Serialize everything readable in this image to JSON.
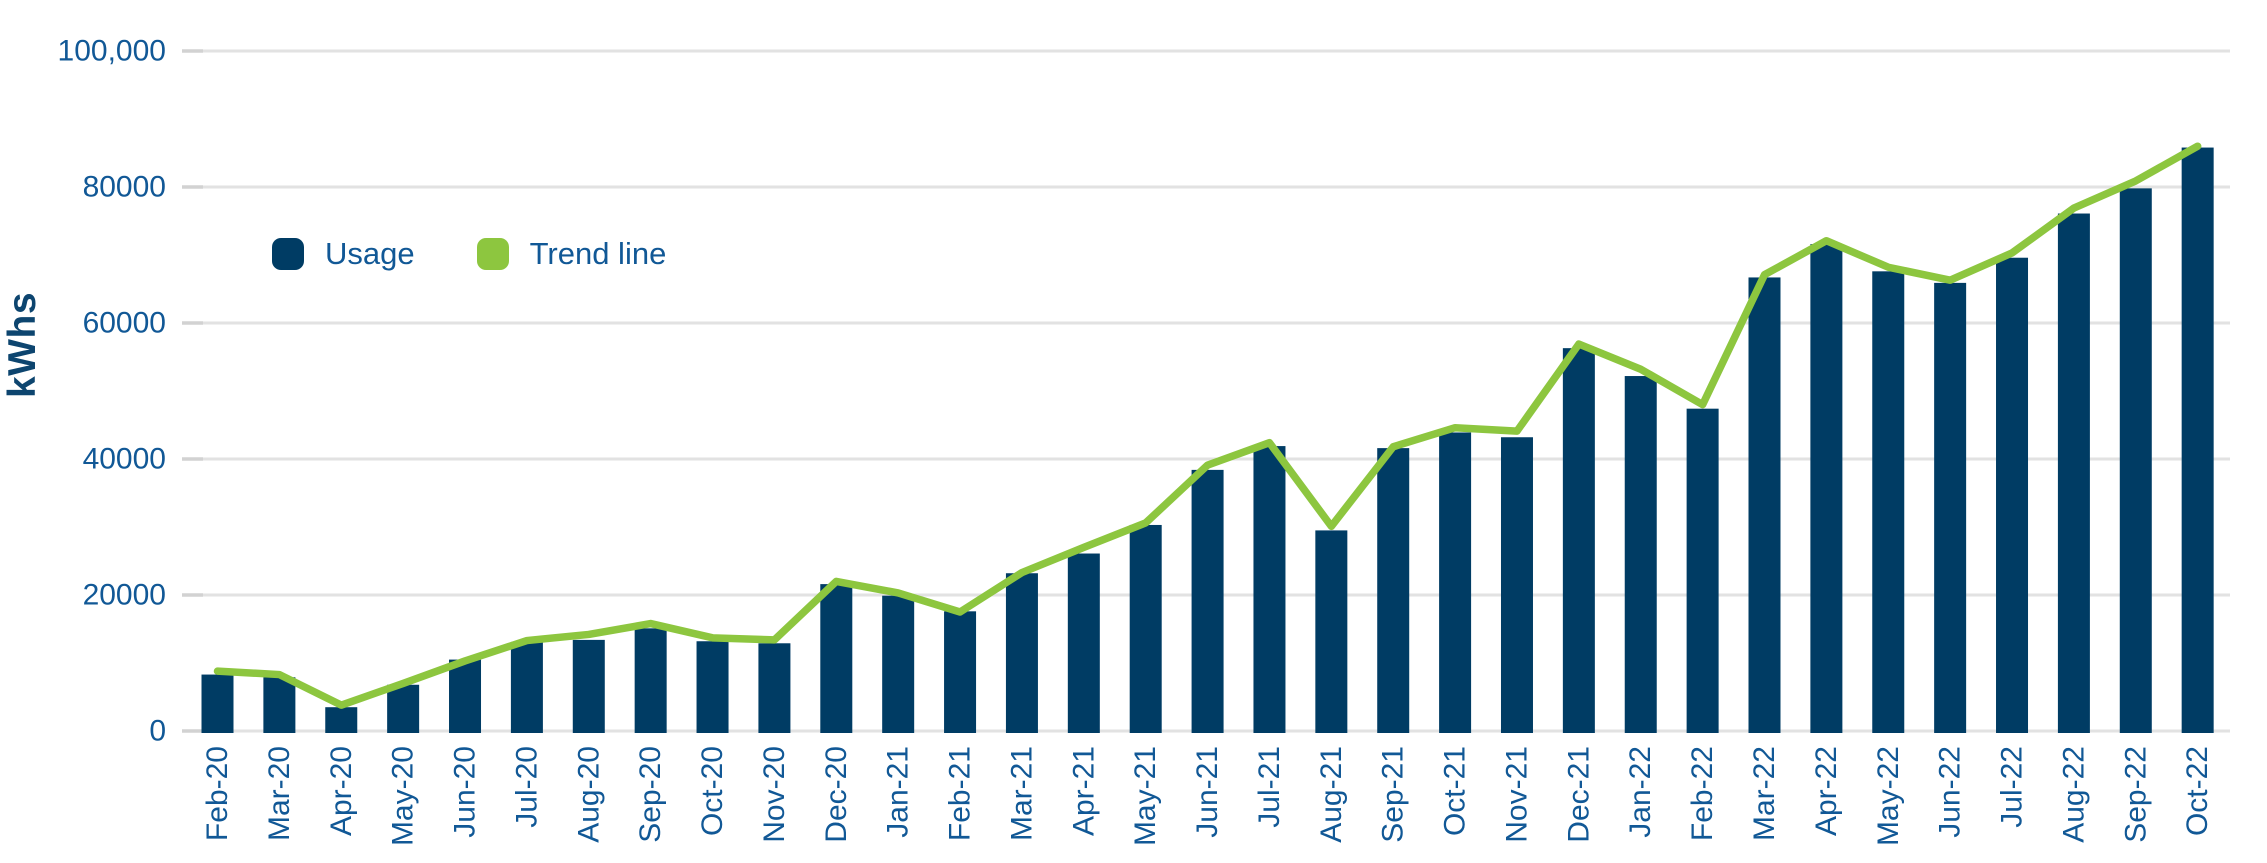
{
  "chart": {
    "y_axis_title": "kWhs",
    "legend": [
      {
        "label": "Usage",
        "color": "#003c64",
        "type": "bar"
      },
      {
        "label": "Trend line",
        "color": "#8dc63f",
        "type": "line"
      }
    ]
  },
  "style": {
    "bar_color": "#003c64",
    "trend_line_color": "#8dc63f",
    "axis_text_color": "#115896",
    "axis_title_color": "#0d456f",
    "gridline_color": "#e2e2e2",
    "tick_mark_color": "#d2d2d2",
    "background_color": "#ffffff"
  },
  "chart_data": {
    "type": "bar",
    "title": "",
    "xlabel": "",
    "ylabel": "kWhs",
    "ylim": [
      0,
      100000
    ],
    "y_tick_values": [
      0,
      20000,
      40000,
      60000,
      80000,
      100000
    ],
    "y_tick_labels": [
      "0",
      "20000",
      "40000",
      "60000",
      "80000",
      "100,000"
    ],
    "grid": true,
    "legend_position": "upper-left-inside",
    "categories": [
      "Feb-20",
      "Mar-20",
      "Apr-20",
      "May-20",
      "Jun-20",
      "Jul-20",
      "Aug-20",
      "Sep-20",
      "Oct-20",
      "Nov-20",
      "Dec-20",
      "Jan-21",
      "Feb-21",
      "Mar-21",
      "Apr-21",
      "May-21",
      "Jun-21",
      "Jul-21",
      "Aug-21",
      "Sep-21",
      "Oct-21",
      "Nov-21",
      "Dec-21",
      "Jan-22",
      "Feb-22",
      "Mar-22",
      "Apr-22",
      "May-22",
      "Jun-22",
      "Jul-22",
      "Aug-22",
      "Sep-22",
      "Oct-22"
    ],
    "series": [
      {
        "name": "Usage",
        "type": "bar",
        "color": "#003c64",
        "values": [
          8300,
          7900,
          3500,
          6800,
          10500,
          13100,
          13400,
          15100,
          13200,
          12900,
          21600,
          19900,
          17600,
          23200,
          26100,
          30300,
          38400,
          41900,
          29500,
          41600,
          43900,
          43200,
          56300,
          52200,
          47400,
          66700,
          71600,
          67600,
          65900,
          69600,
          76100,
          79800,
          85800
        ]
      },
      {
        "name": "Trend line",
        "type": "line",
        "color": "#8dc63f",
        "values": [
          8800,
          8300,
          3800,
          7000,
          10300,
          13300,
          14200,
          15800,
          13700,
          13400,
          22000,
          20300,
          17500,
          23300,
          27000,
          30600,
          39100,
          42400,
          30100,
          41800,
          44600,
          44100,
          56900,
          53200,
          48000,
          67100,
          72100,
          68200,
          66300,
          70300,
          76900,
          80900,
          86000
        ]
      }
    ]
  }
}
